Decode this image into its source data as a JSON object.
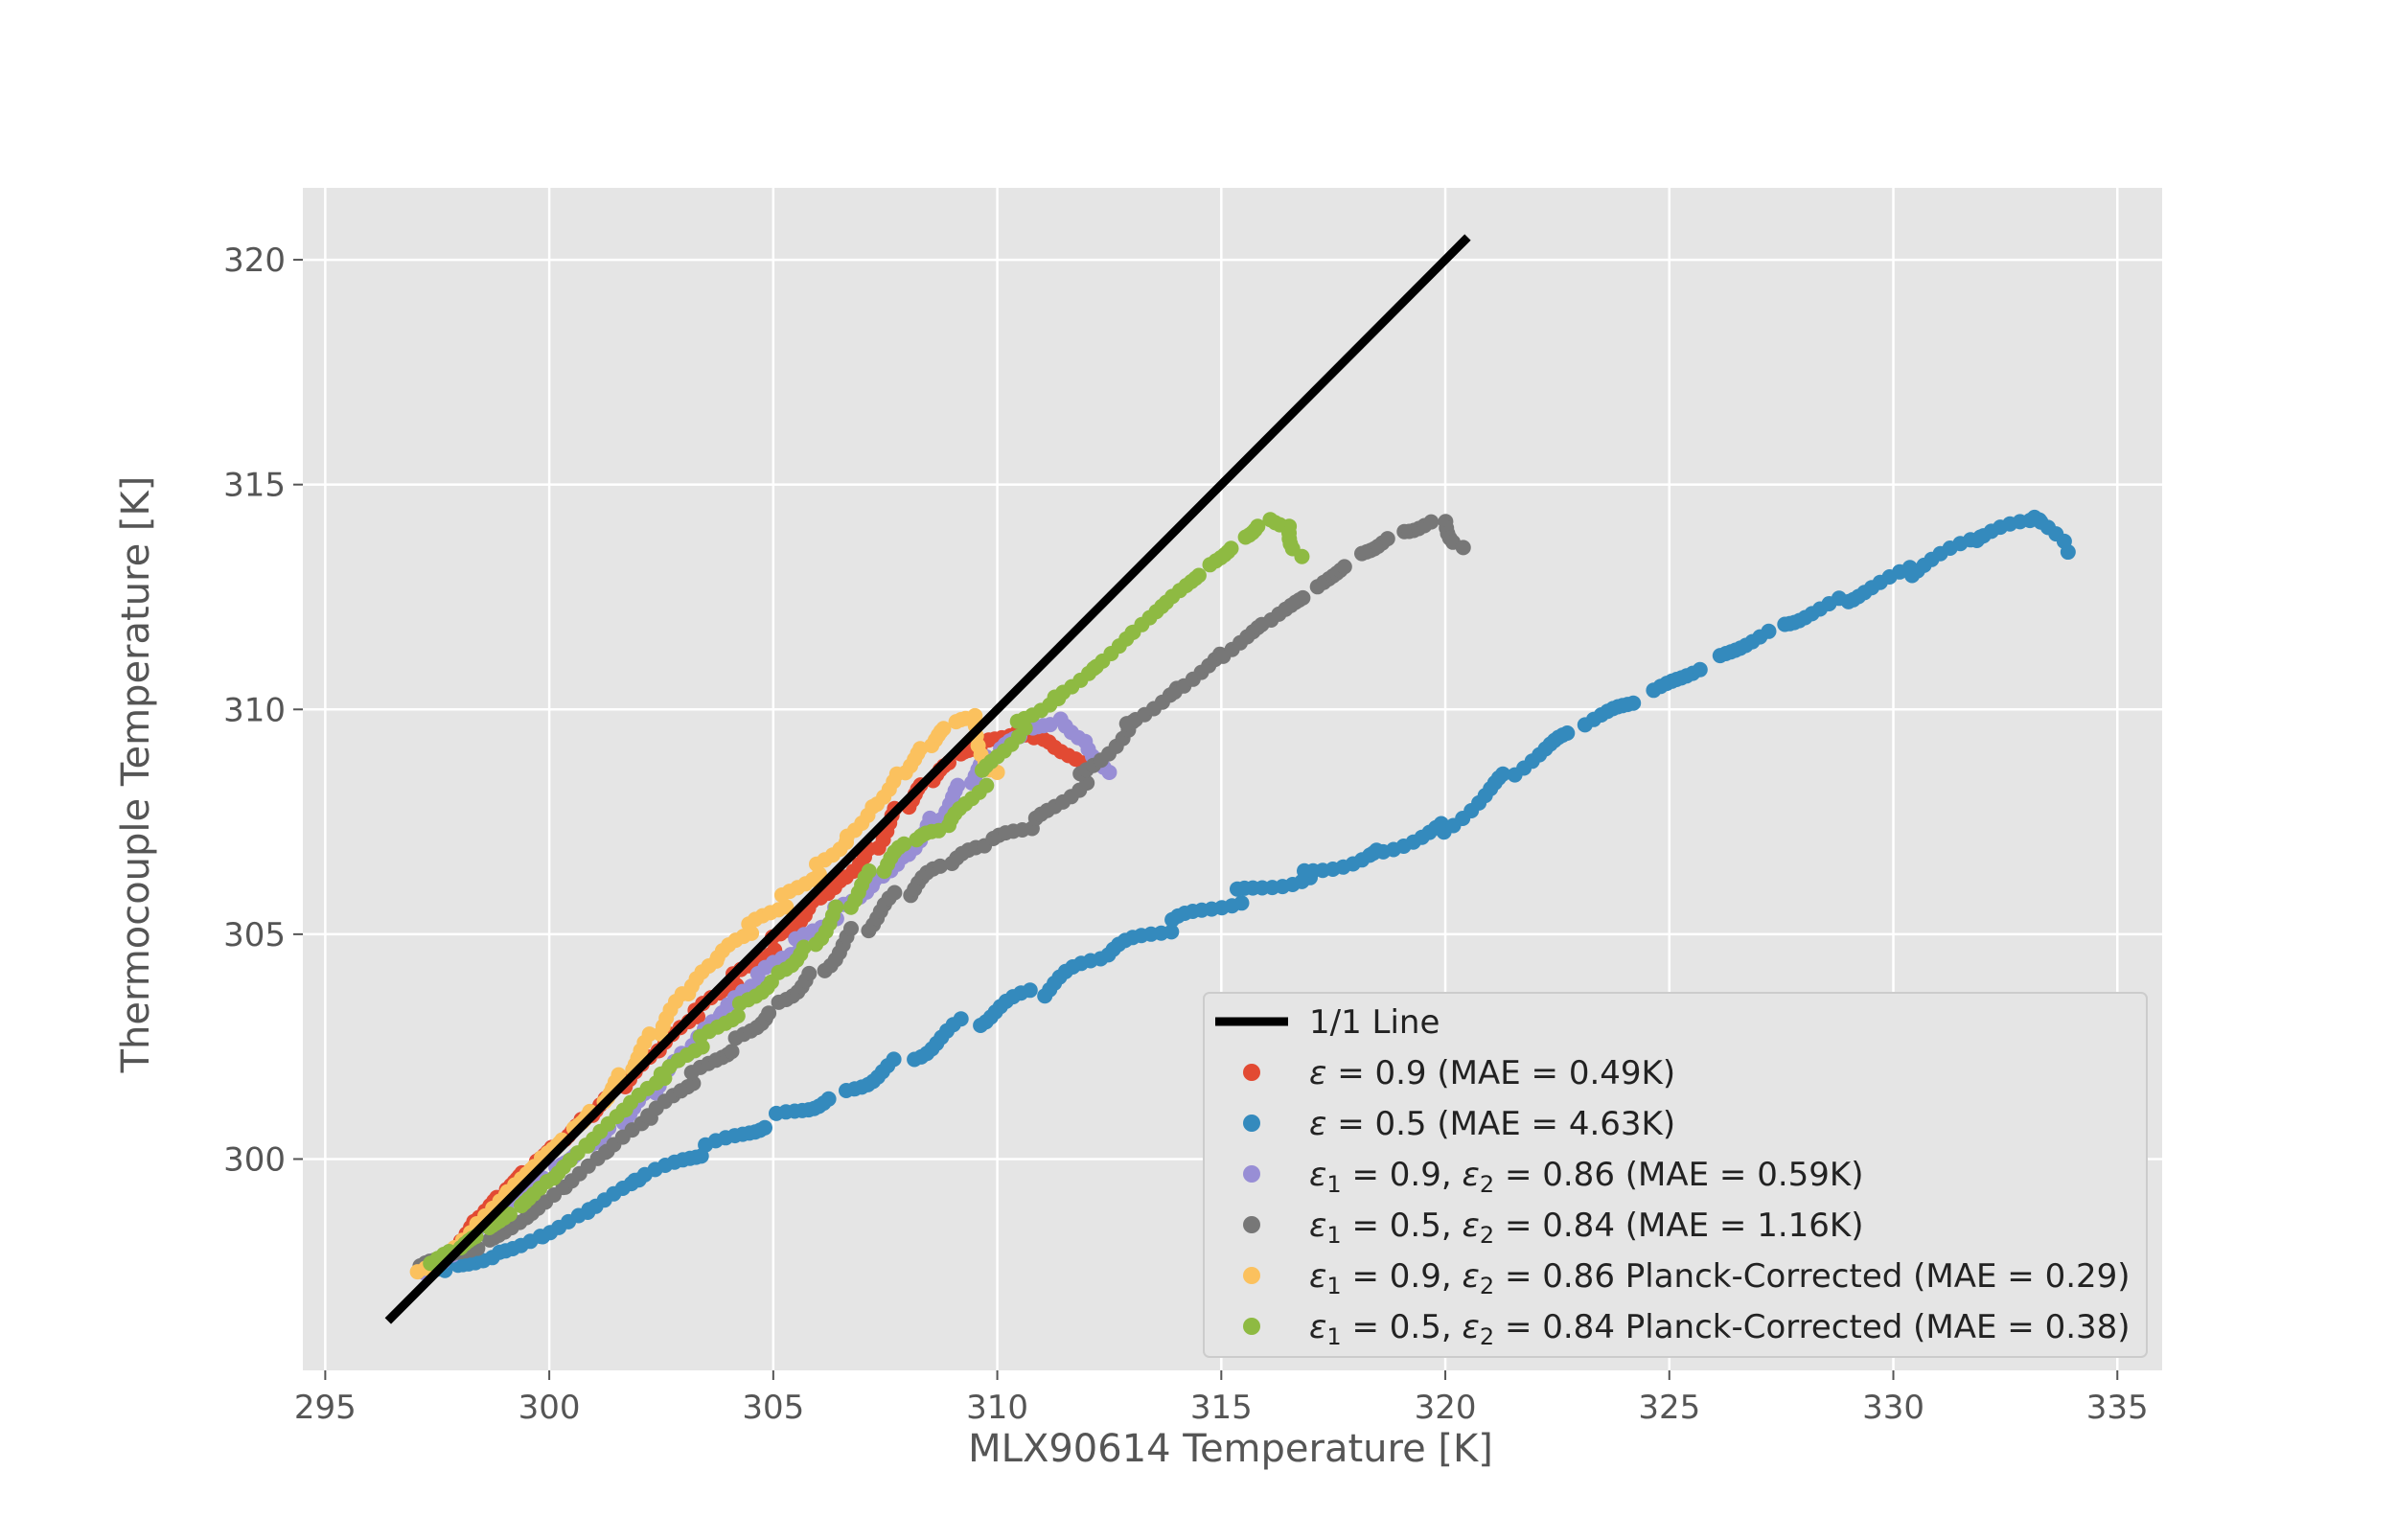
{
  "chart_data": {
    "type": "scatter",
    "xlabel": "MLX90614 Temperature [K]",
    "ylabel": "Thermocouple Temperature [K]",
    "xlim": [
      294.5,
      336.0
    ],
    "ylim": [
      295.3,
      321.6
    ],
    "x_ticks": [
      "295",
      "300",
      "305",
      "310",
      "315",
      "320",
      "325",
      "330",
      "335"
    ],
    "y_ticks": [
      "300",
      "305",
      "310",
      "315",
      "320"
    ],
    "grid": true,
    "legend_position": "lower-right",
    "line": {
      "name": "1/1 Line",
      "x": [
        296.4,
        320.5
      ],
      "y": [
        296.4,
        320.5
      ],
      "color": "#000000"
    },
    "series": [
      {
        "name_parts": [
          [
            "ε",
            "it"
          ],
          [
            " = 0.9 (MAE = 0.49K)",
            "n"
          ]
        ],
        "color": "#E24A33",
        "x": [
          297.3,
          297.8,
          298.3,
          298.9,
          299.6,
          300.3,
          301.0,
          301.8,
          302.6,
          303.4,
          304.2,
          305.0,
          305.8,
          306.5,
          307.2,
          307.9,
          308.5,
          309.2,
          309.9,
          310.6,
          311.3,
          311.9
        ],
        "y": [
          297.6,
          298.0,
          298.6,
          299.2,
          299.9,
          300.5,
          301.1,
          301.7,
          302.4,
          303.2,
          304.0,
          304.9,
          305.8,
          306.4,
          307.0,
          307.8,
          308.3,
          308.9,
          309.3,
          309.6,
          309.4,
          308.6
        ]
      },
      {
        "name_parts": [
          [
            "ε",
            "it"
          ],
          [
            " = 0.5 (MAE = 4.63K)",
            "n"
          ]
        ],
        "color": "#348ABD",
        "x": [
          297.1,
          298.0,
          299.0,
          300.0,
          301.0,
          302.0,
          303.5,
          305.0,
          306.5,
          308.0,
          309.5,
          311.0,
          312.5,
          314.0,
          315.5,
          317.0,
          318.5,
          320.0,
          321.5,
          323.0,
          324.5,
          326.0,
          327.5,
          329.0,
          330.5,
          332.0,
          333.3,
          333.9
        ],
        "y": [
          297.5,
          297.6,
          298.0,
          298.4,
          298.9,
          299.5,
          300.2,
          300.9,
          301.5,
          302.3,
          303.1,
          303.7,
          304.5,
          305.2,
          305.9,
          306.4,
          306.9,
          307.4,
          308.6,
          309.6,
          310.3,
          311.1,
          311.9,
          312.5,
          313.1,
          313.8,
          314.2,
          313.5
        ]
      },
      {
        "name_parts": [
          [
            "ε",
            "it"
          ],
          [
            "1",
            "sub"
          ],
          [
            " = 0.9, ",
            "n"
          ],
          [
            "ε",
            "it"
          ],
          [
            "2",
            "sub"
          ],
          [
            " =  0.86 (MAE = 0.59K)",
            "n"
          ]
        ],
        "color": "#988ED5",
        "x": [
          297.3,
          297.9,
          298.5,
          299.2,
          300.0,
          300.8,
          301.6,
          302.4,
          303.2,
          304.0,
          304.8,
          305.6,
          306.4,
          307.2,
          307.9,
          308.6,
          309.3,
          310.0,
          310.8,
          311.5,
          312.1,
          312.5
        ],
        "y": [
          297.6,
          298.0,
          298.6,
          299.1,
          299.7,
          300.3,
          300.9,
          301.6,
          302.4,
          303.2,
          304.0,
          304.8,
          305.6,
          306.3,
          306.9,
          307.6,
          308.3,
          309.0,
          309.5,
          309.8,
          309.4,
          308.6
        ]
      },
      {
        "name_parts": [
          [
            "ε",
            "it"
          ],
          [
            "1",
            "sub"
          ],
          [
            " = 0.5, ",
            "n"
          ],
          [
            "ε",
            "it"
          ],
          [
            "2",
            "sub"
          ],
          [
            " =  0.84 (MAE = 1.16K)",
            "n"
          ]
        ],
        "color": "#777777",
        "x": [
          297.0,
          297.8,
          298.7,
          299.6,
          300.5,
          301.4,
          302.3,
          303.2,
          304.1,
          305.0,
          306.0,
          307.0,
          308.0,
          309.0,
          310.0,
          311.0,
          312.0,
          313.0,
          314.0,
          315.0,
          316.0,
          317.0,
          318.0,
          319.0,
          320.0,
          320.4
        ],
        "y": [
          297.5,
          297.8,
          298.2,
          298.8,
          299.5,
          300.2,
          300.9,
          301.8,
          302.6,
          303.5,
          304.3,
          305.2,
          305.9,
          306.5,
          307.0,
          307.5,
          308.6,
          309.8,
          310.5,
          311.2,
          311.9,
          312.6,
          313.4,
          314.0,
          314.3,
          313.6
        ]
      },
      {
        "name_parts": [
          [
            "ε",
            "it"
          ],
          [
            "1",
            "sub"
          ],
          [
            " = 0.9, ",
            "n"
          ],
          [
            "ε",
            "it"
          ],
          [
            "2",
            "sub"
          ],
          [
            " = 0.86 Planck-Corrected (MAE = 0.29)",
            "n"
          ]
        ],
        "color": "#FBC15E",
        "x": [
          297.2,
          297.8,
          298.4,
          299.0,
          299.7,
          300.4,
          301.1,
          301.8,
          302.5,
          303.2,
          303.9,
          304.6,
          305.3,
          306.0,
          306.6,
          307.2,
          307.8,
          308.4,
          309.0,
          309.5,
          310.0
        ],
        "y": [
          297.6,
          298.0,
          298.6,
          299.2,
          299.9,
          300.6,
          301.3,
          302.1,
          302.9,
          303.7,
          304.4,
          305.1,
          305.8,
          306.6,
          307.3,
          308.0,
          308.6,
          309.1,
          309.6,
          309.8,
          308.6
        ]
      },
      {
        "name_parts": [
          [
            "ε",
            "it"
          ],
          [
            "1",
            "sub"
          ],
          [
            " = 0.5, ",
            "n"
          ],
          [
            "ε",
            "it"
          ],
          [
            "2",
            "sub"
          ],
          [
            " = 0.84 Planck-Corrected (MAE = 0.38)",
            "n"
          ]
        ],
        "color": "#8EBA42",
        "x": [
          297.2,
          297.9,
          298.6,
          299.4,
          300.2,
          301.0,
          301.8,
          302.6,
          303.4,
          304.2,
          305.0,
          305.8,
          306.6,
          307.4,
          308.2,
          309.0,
          309.8,
          310.6,
          311.4,
          312.2,
          313.0,
          313.8,
          314.6,
          315.4,
          316.0,
          316.5,
          316.8
        ],
        "y": [
          297.6,
          297.9,
          298.4,
          299.0,
          299.7,
          300.4,
          301.1,
          301.8,
          302.6,
          303.4,
          304.2,
          304.9,
          305.7,
          306.4,
          307.0,
          307.3,
          308.6,
          309.8,
          310.4,
          311.0,
          311.7,
          312.4,
          313.1,
          313.8,
          314.3,
          314.2,
          313.4
        ]
      }
    ]
  }
}
